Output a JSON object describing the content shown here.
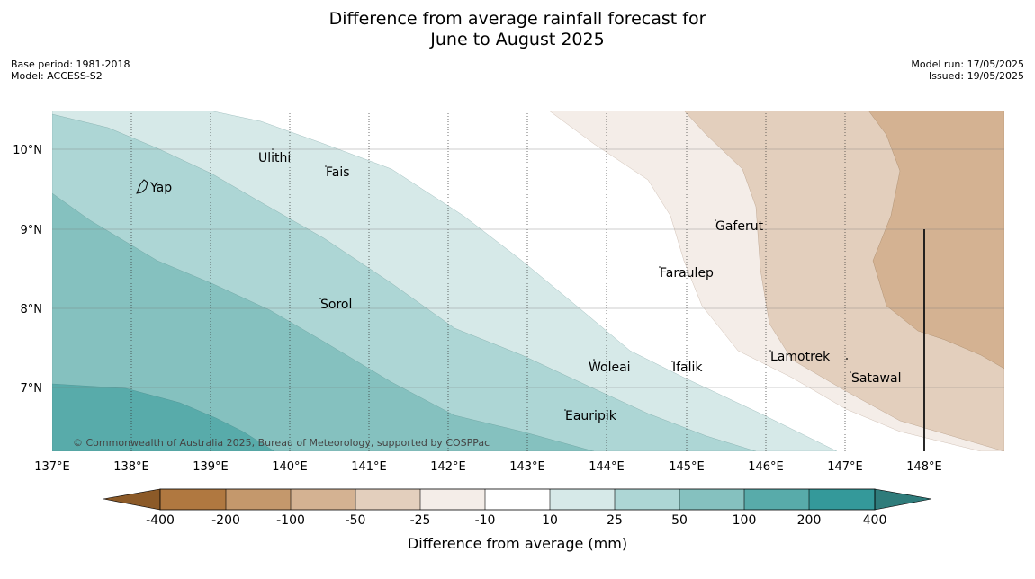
{
  "header": {
    "title_line1": "Difference from average rainfall forecast for",
    "title_line2": "June to August 2025",
    "base_period": "Base period: 1981-2018",
    "model": "Model: ACCESS-S2",
    "model_run": "Model run: 17/05/2025",
    "issued": "Issued: 19/05/2025"
  },
  "map": {
    "copyright": "© Commonwealth of Australia 2025, Bureau of Meteorology, supported by COSPPac",
    "x_ticks": [
      "137°E",
      "138°E",
      "139°E",
      "140°E",
      "141°E",
      "142°E",
      "143°E",
      "144°E",
      "145°E",
      "146°E",
      "147°E",
      "148°E"
    ],
    "y_ticks": [
      "10°N",
      "9°N",
      "8°N",
      "7°N"
    ],
    "places": [
      {
        "name": "Yap",
        "lon": 138.3,
        "lat": 9.52
      },
      {
        "name": "Ulithi",
        "lon": 139.7,
        "lat": 9.92
      },
      {
        "name": "Fais",
        "lon": 140.5,
        "lat": 9.75
      },
      {
        "name": "Sorol",
        "lon": 140.4,
        "lat": 8.08
      },
      {
        "name": "Gaferut",
        "lon": 145.4,
        "lat": 9.06
      },
      {
        "name": "Faraulep",
        "lon": 144.7,
        "lat": 8.47
      },
      {
        "name": "Woleai",
        "lon": 143.8,
        "lat": 7.3
      },
      {
        "name": "Ifalik",
        "lon": 144.8,
        "lat": 7.3
      },
      {
        "name": "Lamotrek",
        "lon": 146.1,
        "lat": 7.42
      },
      {
        "name": "Satawal",
        "lon": 147.1,
        "lat": 7.15
      },
      {
        "name": "Eauripik",
        "lon": 143.5,
        "lat": 6.69
      }
    ],
    "extent": {
      "lon": [
        137.0,
        149.0
      ],
      "lat": [
        6.2,
        10.5
      ]
    }
  },
  "colorbar": {
    "title": "Difference from average (mm)",
    "labels": [
      "-400",
      "-200",
      "-100",
      "-50",
      "-25",
      "-10",
      "10",
      "25",
      "50",
      "100",
      "200",
      "400"
    ],
    "colors": [
      "#8c5a28",
      "#b07840",
      "#c4986c",
      "#d4b292",
      "#e3cfbd",
      "#f4ede8",
      "#ffffff",
      "#d6e9e8",
      "#add6d5",
      "#85c1bf",
      "#58abaa",
      "#34999a",
      "#2f7c7b"
    ]
  }
}
